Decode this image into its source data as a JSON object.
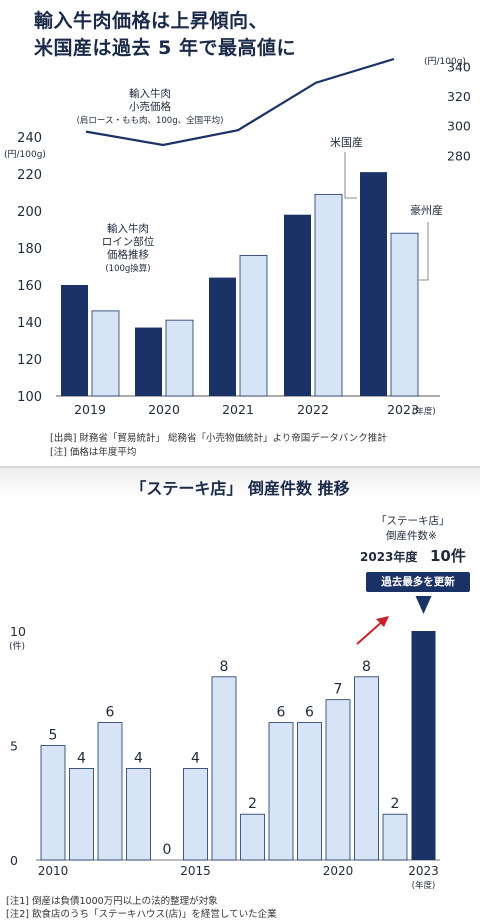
{
  "headline": {
    "line1": "輸入牛肉価格は上昇傾向、",
    "line2": "米国産は過去 5 年で最高値に"
  },
  "notes": {
    "source": "[出典]  財務省「貿易統計」 総務省「小売物価統計」より帝国データバンク推計",
    "note1": "[注]  価格は年度平均"
  },
  "colors": {
    "navy": "#1b3266",
    "light": "#d6e4f5",
    "line": "#1b3266",
    "bar_outline": "#1b3266"
  },
  "chart_data": [
    {
      "type": "bar",
      "categories": [
        "2019",
        "2020",
        "2021",
        "2022",
        "2023(年度)"
      ],
      "series": [
        {
          "name": "米国産",
          "values": [
            160,
            137,
            164,
            198,
            221
          ]
        },
        {
          "name": "豪州産",
          "values": [
            146,
            141,
            176,
            209,
            188
          ]
        }
      ],
      "ylim": [
        100,
        240
      ],
      "yticks": [
        "100",
        "120",
        "140",
        "160",
        "180",
        "200",
        "220",
        "240"
      ],
      "y_unit": "(円/100g)",
      "bar_label": [
        "輸入牛肉",
        "ロイン部位",
        "価格推移",
        "(100g換算)"
      ],
      "line_overlay": {
        "type": "line",
        "label": [
          "輸入牛肉",
          "小売価格",
          "(肩ロース・もも肉、100g、全国平均)"
        ],
        "x": [
          "2019",
          "2020",
          "2021",
          "2022",
          "2023"
        ],
        "values": [
          296,
          287,
          297,
          329,
          345
        ],
        "ylim": [
          260,
          345
        ],
        "yticks": [
          "280",
          "300",
          "320",
          "340"
        ],
        "y_unit": "(円/100g)"
      },
      "callouts": {
        "us": "米国産",
        "au": "豪州産"
      }
    },
    {
      "type": "bar",
      "title": "「ステーキ店」  倒産件数   推移",
      "categories": [
        "2010",
        "2011",
        "2012",
        "2013",
        "2014",
        "2015",
        "2016",
        "2017",
        "2018",
        "2019",
        "2020",
        "2021",
        "2022",
        "2023"
      ],
      "values": [
        5,
        4,
        6,
        4,
        0,
        4,
        8,
        2,
        6,
        6,
        7,
        8,
        2,
        10
      ],
      "xticks": [
        "2010",
        "2015",
        "2020",
        "2023"
      ],
      "x_unit": "(年度)",
      "ylim": [
        0,
        10
      ],
      "yticks": [
        "0",
        "5",
        "10"
      ],
      "y_unit": "(件)",
      "annotation": {
        "name_line1": "「ステーキ店」",
        "name_line2": "倒産件数※",
        "year": "2023年度",
        "count": "10件",
        "badge": "過去最多を更新"
      }
    }
  ],
  "footnotes": {
    "fn1": "[注1]  倒産は負債1000万円以上の法的整理が対象",
    "fn2": "[注2]  飲食店のうち「ステーキハウス(店)」を経営していた企業"
  }
}
